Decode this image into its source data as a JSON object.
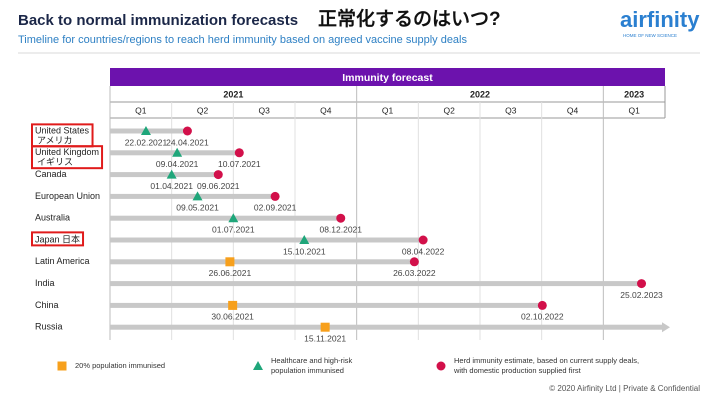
{
  "header": {
    "title": "Back to normal immunization forecasts",
    "title_jp": "正常化するのはいつ?",
    "subtitle": "Timeline for countries/regions to reach herd immunity based on agreed vaccine supply deals",
    "logo": "airfinity",
    "logo_tagline": "HOME OF NEW SCIENCE"
  },
  "chart_data": {
    "type": "timeline",
    "title": "Immunity forecast",
    "years": [
      {
        "label": "2021",
        "quarters": [
          "Q1",
          "Q2",
          "Q3",
          "Q4"
        ]
      },
      {
        "label": "2022",
        "quarters": [
          "Q1",
          "Q2",
          "Q3",
          "Q4"
        ]
      },
      {
        "label": "2023",
        "quarters": [
          "Q1"
        ]
      }
    ],
    "legend": [
      {
        "shape": "square",
        "color": "#f7a01c",
        "label": "20% population immunised"
      },
      {
        "shape": "triangle",
        "color": "#1fa67a",
        "label": "Healthcare and high-risk population immunised"
      },
      {
        "shape": "circle",
        "color": "#d2104a",
        "label": "Herd immunity estimate, based on current supply deals, with domestic production supplied first"
      }
    ],
    "rows": [
      {
        "name": "United States",
        "name_jp": "アメリカ",
        "highlight": true,
        "milestones": [
          {
            "shape": "triangle",
            "date": "22.02.2021"
          },
          {
            "shape": "circle",
            "date": "24.04.2021"
          }
        ]
      },
      {
        "name": "United Kingdom",
        "name_jp": "イギリス",
        "highlight": true,
        "milestones": [
          {
            "shape": "triangle",
            "date": "09.04.2021"
          },
          {
            "shape": "circle",
            "date": "10.07.2021"
          }
        ]
      },
      {
        "name": "Canada",
        "milestones": [
          {
            "shape": "triangle",
            "date": "01.04.2021"
          },
          {
            "shape": "circle",
            "date": "09.06.2021"
          }
        ]
      },
      {
        "name": "European Union",
        "milestones": [
          {
            "shape": "triangle",
            "date": "09.05.2021"
          },
          {
            "shape": "circle",
            "date": "02.09.2021"
          }
        ]
      },
      {
        "name": "Australia",
        "milestones": [
          {
            "shape": "triangle",
            "date": "01.07.2021"
          },
          {
            "shape": "circle",
            "date": "08.12.2021"
          }
        ]
      },
      {
        "name": "Japan 日本",
        "highlight": true,
        "milestones": [
          {
            "shape": "triangle",
            "date": "15.10.2021"
          },
          {
            "shape": "circle",
            "date": "08.04.2022"
          }
        ]
      },
      {
        "name": "Latin America",
        "milestones": [
          {
            "shape": "square",
            "date": "26.06.2021"
          },
          {
            "shape": "circle",
            "date": "26.03.2022"
          }
        ]
      },
      {
        "name": "India",
        "milestones": [
          {
            "shape": "circle",
            "date": "25.02.2023"
          }
        ]
      },
      {
        "name": "China",
        "milestones": [
          {
            "shape": "square",
            "date": "30.06.2021"
          },
          {
            "shape": "circle",
            "date": "02.10.2022"
          }
        ]
      },
      {
        "name": "Russia",
        "milestones": [
          {
            "shape": "square",
            "date": "15.11.2021"
          }
        ]
      }
    ]
  },
  "footer": "© 2020 Airfinity Ltd  |  Private & Confidential"
}
